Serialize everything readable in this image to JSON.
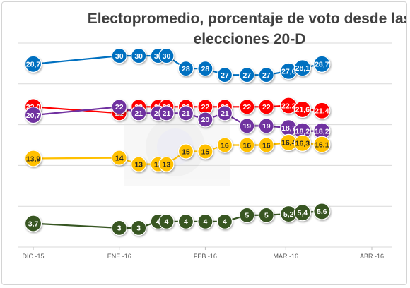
{
  "chart_data": {
    "type": "line",
    "title_lines": [
      "Electopromedio, porcentaje de voto desde las",
      "elecciones 20-D"
    ],
    "x_axis": {
      "ticks": [
        {
          "label": "DIC.-15",
          "day": 0
        },
        {
          "label": "ENE.-16",
          "day": 31
        },
        {
          "label": "FEB.-16",
          "day": 62
        },
        {
          "label": "MAR.-16",
          "day": 91
        },
        {
          "label": "ABR.-16",
          "day": 122
        }
      ],
      "range": [
        0,
        122
      ]
    },
    "y_range": [
      0,
      32
    ],
    "grid": "horizontal",
    "legend": "none",
    "series": [
      {
        "color": "#0070c0",
        "text_color": "#ffffff",
        "points": [
          {
            "day": 0,
            "value": 28.7,
            "label": "28,7"
          },
          {
            "day": 31,
            "value": 30,
            "label": "30"
          },
          {
            "day": 38,
            "value": 30,
            "label": "30"
          },
          {
            "day": 45,
            "value": 30,
            "label": "30"
          },
          {
            "day": 48,
            "value": 30,
            "label": "30"
          },
          {
            "day": 55,
            "value": 28,
            "label": "28"
          },
          {
            "day": 62,
            "value": 28,
            "label": "28"
          },
          {
            "day": 69,
            "value": 27,
            "label": "27"
          },
          {
            "day": 77,
            "value": 27,
            "label": "27"
          },
          {
            "day": 84,
            "value": 27,
            "label": "27"
          },
          {
            "day": 92,
            "value": 27.6,
            "label": "27,6"
          },
          {
            "day": 97,
            "value": 28.1,
            "label": "28,1"
          },
          {
            "day": 104,
            "value": 28.7,
            "label": "28,7"
          }
        ]
      },
      {
        "color": "#ff0000",
        "text_color": "#ffffff",
        "points": [
          {
            "day": 0,
            "value": 22.0,
            "label": "22,0"
          },
          {
            "day": 31,
            "value": 21,
            "label": "21"
          },
          {
            "day": 38,
            "value": 22,
            "label": "22"
          },
          {
            "day": 45,
            "value": 22,
            "label": "22"
          },
          {
            "day": 48,
            "value": 22,
            "label": "22"
          },
          {
            "day": 55,
            "value": 22,
            "label": "22"
          },
          {
            "day": 62,
            "value": 22,
            "label": "22"
          },
          {
            "day": 69,
            "value": 22,
            "label": "22"
          },
          {
            "day": 77,
            "value": 22,
            "label": "22"
          },
          {
            "day": 84,
            "value": 22,
            "label": "22"
          },
          {
            "day": 92,
            "value": 22.2,
            "label": "22,2"
          },
          {
            "day": 97,
            "value": 21.6,
            "label": "21,6"
          },
          {
            "day": 104,
            "value": 21.4,
            "label": "21,4"
          }
        ]
      },
      {
        "color": "#7030a0",
        "text_color": "#ffffff",
        "points": [
          {
            "day": 0,
            "value": 20.7,
            "label": "20,7"
          },
          {
            "day": 31,
            "value": 22,
            "label": "22"
          },
          {
            "day": 38,
            "value": 21,
            "label": "21"
          },
          {
            "day": 45,
            "value": 21,
            "label": "21"
          },
          {
            "day": 48,
            "value": 21,
            "label": "21"
          },
          {
            "day": 55,
            "value": 21,
            "label": "21"
          },
          {
            "day": 62,
            "value": 20,
            "label": "20"
          },
          {
            "day": 69,
            "value": 21,
            "label": "21"
          },
          {
            "day": 77,
            "value": 19,
            "label": "19"
          },
          {
            "day": 84,
            "value": 19,
            "label": "19"
          },
          {
            "day": 92,
            "value": 18.7,
            "label": "18,7"
          },
          {
            "day": 97,
            "value": 18.2,
            "label": "18,2"
          },
          {
            "day": 104,
            "value": 18.2,
            "label": "18,2"
          }
        ]
      },
      {
        "color": "#ffc000",
        "text_color": "#262626",
        "points": [
          {
            "day": 0,
            "value": 13.9,
            "label": "13,9"
          },
          {
            "day": 31,
            "value": 14,
            "label": "14"
          },
          {
            "day": 38,
            "value": 13,
            "label": "13"
          },
          {
            "day": 45,
            "value": 13,
            "label": "13"
          },
          {
            "day": 48,
            "value": 13,
            "label": "13"
          },
          {
            "day": 55,
            "value": 15,
            "label": "15"
          },
          {
            "day": 62,
            "value": 15,
            "label": "15"
          },
          {
            "day": 69,
            "value": 16,
            "label": "16"
          },
          {
            "day": 77,
            "value": 16,
            "label": "16"
          },
          {
            "day": 84,
            "value": 16,
            "label": "16"
          },
          {
            "day": 92,
            "value": 16.4,
            "label": "16,4"
          },
          {
            "day": 97,
            "value": 16.3,
            "label": "16,3"
          },
          {
            "day": 104,
            "value": 16.1,
            "label": "16,1"
          }
        ]
      },
      {
        "color": "#375623",
        "text_color": "#ffffff",
        "points": [
          {
            "day": 0,
            "value": 3.7,
            "label": "3,7"
          },
          {
            "day": 31,
            "value": 3,
            "label": "3"
          },
          {
            "day": 38,
            "value": 3,
            "label": "3"
          },
          {
            "day": 45,
            "value": 4,
            "label": "4"
          },
          {
            "day": 48,
            "value": 4,
            "label": "4"
          },
          {
            "day": 55,
            "value": 4,
            "label": "4"
          },
          {
            "day": 62,
            "value": 4,
            "label": "4"
          },
          {
            "day": 69,
            "value": 4,
            "label": "4"
          },
          {
            "day": 77,
            "value": 5,
            "label": "5"
          },
          {
            "day": 84,
            "value": 5,
            "label": "5"
          },
          {
            "day": 92,
            "value": 5.2,
            "label": "5,2"
          },
          {
            "day": 97,
            "value": 5.4,
            "label": "5,4"
          },
          {
            "day": 104,
            "value": 5.6,
            "label": "5,6"
          }
        ]
      }
    ]
  }
}
